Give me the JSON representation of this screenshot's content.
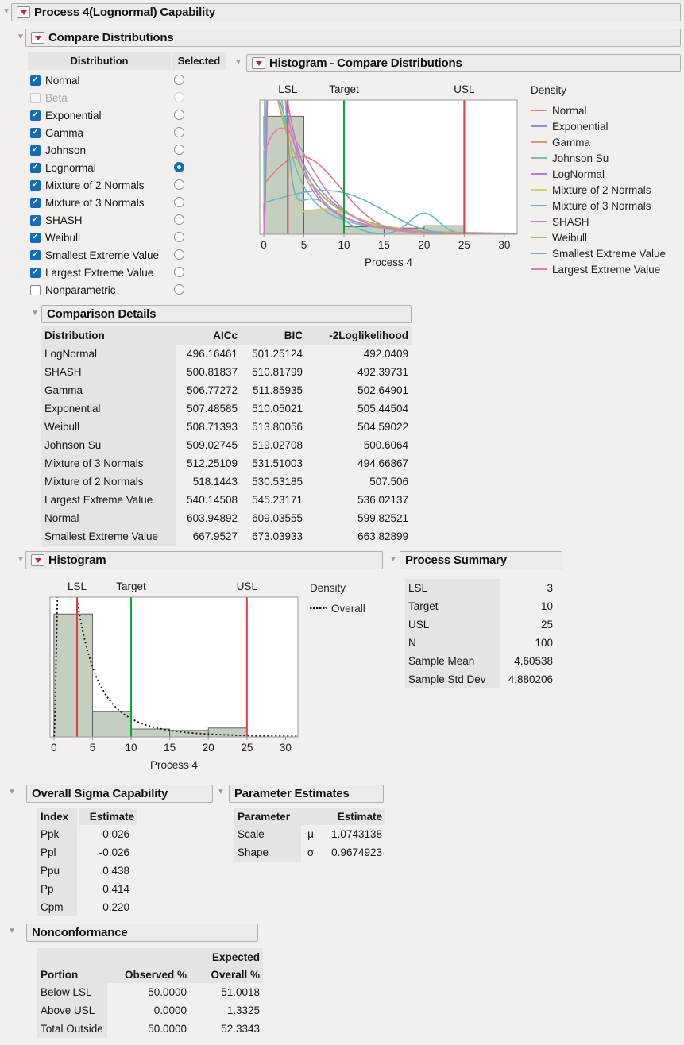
{
  "sections": {
    "process_capability": "Process 4(Lognormal) Capability",
    "compare_distributions": "Compare Distributions",
    "histogram_compare": "Histogram - Compare Distributions",
    "comparison_details": "Comparison Details",
    "histogram": "Histogram",
    "process_summary": "Process Summary",
    "overall_sigma": "Overall Sigma Capability",
    "parameter_estimates": "Parameter Estimates",
    "nonconformance": "Nonconformance"
  },
  "selector": {
    "col_distribution": "Distribution",
    "col_selected": "Selected",
    "items": [
      {
        "label": "Normal",
        "checked": true,
        "disabled": false,
        "selected": false
      },
      {
        "label": "Beta",
        "checked": false,
        "disabled": true,
        "selected": false
      },
      {
        "label": "Exponential",
        "checked": true,
        "disabled": false,
        "selected": false
      },
      {
        "label": "Gamma",
        "checked": true,
        "disabled": false,
        "selected": false
      },
      {
        "label": "Johnson",
        "checked": true,
        "disabled": false,
        "selected": false
      },
      {
        "label": "Lognormal",
        "checked": true,
        "disabled": false,
        "selected": true
      },
      {
        "label": "Mixture of 2 Normals",
        "checked": true,
        "disabled": false,
        "selected": false
      },
      {
        "label": "Mixture of 3 Normals",
        "checked": true,
        "disabled": false,
        "selected": false
      },
      {
        "label": "SHASH",
        "checked": true,
        "disabled": false,
        "selected": false
      },
      {
        "label": "Weibull",
        "checked": true,
        "disabled": false,
        "selected": false
      },
      {
        "label": "Smallest Extreme Value",
        "checked": true,
        "disabled": false,
        "selected": false
      },
      {
        "label": "Largest Extreme Value",
        "checked": true,
        "disabled": false,
        "selected": false
      },
      {
        "label": "Nonparametric",
        "checked": false,
        "disabled": false,
        "selected": false
      }
    ]
  },
  "comparison_details": {
    "columns": [
      "Distribution",
      "AICc",
      "BIC",
      "-2Loglikelihood"
    ],
    "rows": [
      [
        "LogNormal",
        "496.16461",
        "501.25124",
        "492.0409"
      ],
      [
        "SHASH",
        "500.81837",
        "510.81799",
        "492.39731"
      ],
      [
        "Gamma",
        "506.77272",
        "511.85935",
        "502.64901"
      ],
      [
        "Exponential",
        "507.48585",
        "510.05021",
        "505.44504"
      ],
      [
        "Weibull",
        "508.71393",
        "513.80056",
        "504.59022"
      ],
      [
        "Johnson Su",
        "509.02745",
        "519.02708",
        "500.6064"
      ],
      [
        "Mixture of 3 Normals",
        "512.25109",
        "531.51003",
        "494.66867"
      ],
      [
        "Mixture of 2 Normals",
        "518.1443",
        "530.53185",
        "507.506"
      ],
      [
        "Largest Extreme Value",
        "540.14508",
        "545.23171",
        "536.02137"
      ],
      [
        "Normal",
        "603.94892",
        "609.03555",
        "599.82521"
      ],
      [
        "Smallest Extreme Value",
        "667.9527",
        "673.03933",
        "663.82899"
      ]
    ]
  },
  "process_summary": {
    "rows": [
      [
        "LSL",
        "3"
      ],
      [
        "Target",
        "10"
      ],
      [
        "USL",
        "25"
      ],
      [
        "N",
        "100"
      ],
      [
        "Sample Mean",
        "4.60538"
      ],
      [
        "Sample Std Dev",
        "4.880206"
      ]
    ]
  },
  "overall_sigma": {
    "columns": [
      "Index",
      "Estimate"
    ],
    "rows": [
      [
        "Ppk",
        "-0.026"
      ],
      [
        "Ppl",
        "-0.026"
      ],
      [
        "Ppu",
        "0.438"
      ],
      [
        "Pp",
        "0.414"
      ],
      [
        "Cpm",
        "0.220"
      ]
    ]
  },
  "parameter_estimates": {
    "columns": [
      "Parameter",
      "",
      "Estimate"
    ],
    "rows": [
      [
        "Scale",
        "μ",
        "1.0743138"
      ],
      [
        "Shape",
        "σ",
        "0.9674923"
      ]
    ]
  },
  "nonconformance": {
    "col_portion": "Portion",
    "col_observed": "Observed %",
    "col_expected_line1": "Expected",
    "col_expected_line2": "Overall %",
    "rows": [
      [
        "Below LSL",
        "50.0000",
        "51.0018"
      ],
      [
        "Above USL",
        "0.0000",
        "1.3325"
      ],
      [
        "Total Outside",
        "50.0000",
        "52.3343"
      ]
    ]
  },
  "chart_data": [
    {
      "id": "compare",
      "type": "histogram+density-curves",
      "title": "Histogram - Compare Distributions",
      "xlabel": "Process 4",
      "legend_title": "Density",
      "x_ticks": [
        0,
        5,
        10,
        15,
        20,
        25,
        30
      ],
      "xlim": [
        -0.5,
        31.6
      ],
      "ylim": [
        0,
        0.141
      ],
      "grid": false,
      "legend_position": "right",
      "bins": {
        "edges": [
          0,
          5,
          10,
          15,
          20,
          25,
          30
        ],
        "densities": [
          0.124,
          0.0255,
          0.008,
          0.0065,
          0.009,
          0.0
        ]
      },
      "bar_fill": "#c4cfc0",
      "bar_stroke": "#616161",
      "spec_lines": [
        {
          "label": "LSL",
          "value": 3,
          "color": "#e73848"
        },
        {
          "label": "Target",
          "value": 10,
          "color": "#00a93c"
        },
        {
          "label": "USL",
          "value": 25,
          "color": "#e73848"
        }
      ],
      "series": [
        {
          "name": "Normal",
          "color": "#d47f88",
          "type": "normal",
          "params": [
            4.60538,
            4.880206
          ]
        },
        {
          "name": "Exponential",
          "color": "#8396d3",
          "type": "exponential",
          "params": [
            0.21714
          ]
        },
        {
          "name": "Gamma",
          "color": "#cf9b70",
          "type": "gamma",
          "params": [
            0.83,
            5.55
          ]
        },
        {
          "name": "Johnson Su",
          "color": "#6dc4ab",
          "type": "lognormal",
          "params": [
            0.75,
            1.25
          ]
        },
        {
          "name": "LogNormal",
          "color": "#b878d8",
          "type": "lognormal",
          "params": [
            1.0743138,
            0.9674923
          ]
        },
        {
          "name": "Mixture of 2 Normals",
          "color": "#d5cd73",
          "type": "normal_mixture",
          "params": [
            [
              0.7,
              1.6,
              1.0
            ],
            [
              0.3,
              7.5,
              4.5
            ]
          ]
        },
        {
          "name": "Mixture of 3 Normals",
          "color": "#5fbdbd",
          "type": "normal_mixture",
          "params": [
            [
              0.62,
              1.5,
              1.0
            ],
            [
              0.28,
              6.0,
              3.0
            ],
            [
              0.1,
              20.0,
              1.8
            ]
          ]
        },
        {
          "name": "SHASH",
          "color": "#df74cd",
          "type": "lognormal",
          "params": [
            1.0,
            1.05
          ]
        },
        {
          "name": "Weibull",
          "color": "#a8bf62",
          "type": "weibull",
          "params": [
            0.9,
            4.4
          ]
        },
        {
          "name": "Smallest Extreme Value",
          "color": "#6cb2cc",
          "type": "gumbel_min",
          "params": [
            7.5,
            8.0
          ]
        },
        {
          "name": "Largest Extreme Value",
          "color": "#e37bb4",
          "type": "gumbel_max",
          "params": [
            2.2,
            3.3
          ]
        }
      ]
    },
    {
      "id": "overall",
      "type": "histogram+density-curves",
      "title": "Histogram",
      "xlabel": "Process 4",
      "legend_title": "Density",
      "x_ticks": [
        0,
        5,
        10,
        15,
        20,
        25,
        30
      ],
      "xlim": [
        -0.5,
        31.6
      ],
      "ylim": [
        0,
        0.141
      ],
      "grid": false,
      "legend_position": "right",
      "bins": {
        "edges": [
          0,
          5,
          10,
          15,
          20,
          25,
          30
        ],
        "densities": [
          0.124,
          0.0255,
          0.008,
          0.0065,
          0.009,
          0.0
        ]
      },
      "bar_fill": "#c4cfc0",
      "bar_stroke": "#616161",
      "spec_lines": [
        {
          "label": "LSL",
          "value": 3,
          "color": "#e73848"
        },
        {
          "label": "Target",
          "value": 10,
          "color": "#00a93c"
        },
        {
          "label": "USL",
          "value": 25,
          "color": "#e73848"
        }
      ],
      "series": [
        {
          "name": "Overall",
          "color": "#1a1a1a",
          "dash": true,
          "type": "lognormal",
          "params": [
            1.0743138,
            0.9674923
          ]
        }
      ]
    }
  ]
}
